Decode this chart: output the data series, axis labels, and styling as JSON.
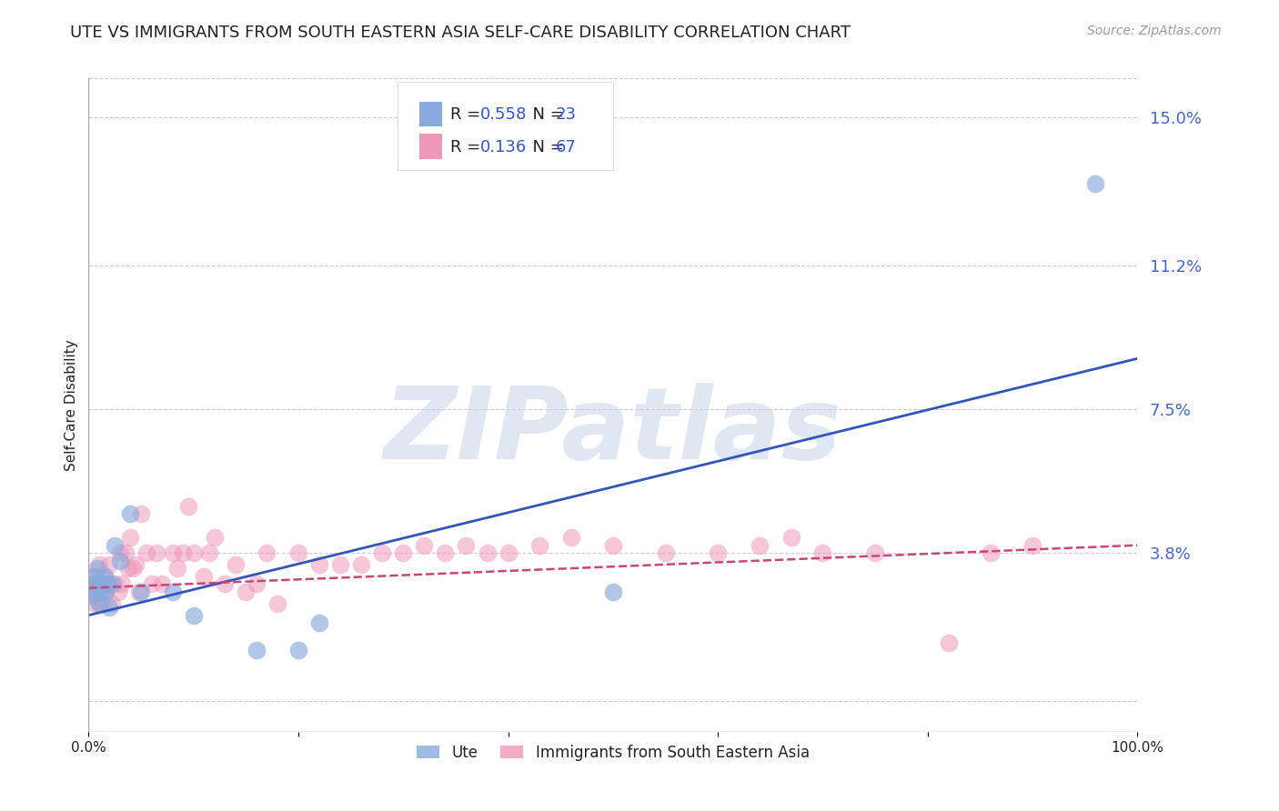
{
  "title": "UTE VS IMMIGRANTS FROM SOUTH EASTERN ASIA SELF-CARE DISABILITY CORRELATION CHART",
  "source": "Source: ZipAtlas.com",
  "ylabel": "Self-Care Disability",
  "watermark": "ZIPatlas",
  "y_ticks": [
    0.0,
    0.038,
    0.075,
    0.112,
    0.15
  ],
  "y_tick_labels": [
    "",
    "3.8%",
    "7.5%",
    "11.2%",
    "15.0%"
  ],
  "x_tick_positions": [
    0.0,
    0.2,
    0.4,
    0.6,
    0.8,
    1.0
  ],
  "x_tick_labels": [
    "0.0%",
    "",
    "",
    "",
    "",
    "100.0%"
  ],
  "xlim": [
    0.0,
    1.0
  ],
  "ylim": [
    -0.008,
    0.16
  ],
  "blue_scatter_x": [
    0.003,
    0.005,
    0.006,
    0.007,
    0.008,
    0.009,
    0.01,
    0.011,
    0.012,
    0.013,
    0.015,
    0.016,
    0.018,
    0.02,
    0.022,
    0.025,
    0.03,
    0.04,
    0.05,
    0.08,
    0.1,
    0.16,
    0.2,
    0.22,
    0.5,
    0.96
  ],
  "blue_scatter_y": [
    0.027,
    0.032,
    0.028,
    0.03,
    0.034,
    0.03,
    0.025,
    0.03,
    0.028,
    0.03,
    0.032,
    0.028,
    0.03,
    0.024,
    0.03,
    0.04,
    0.036,
    0.048,
    0.028,
    0.028,
    0.022,
    0.013,
    0.013,
    0.02,
    0.028,
    0.133
  ],
  "pink_scatter_x": [
    0.003,
    0.005,
    0.006,
    0.007,
    0.008,
    0.009,
    0.01,
    0.011,
    0.012,
    0.013,
    0.015,
    0.016,
    0.018,
    0.02,
    0.022,
    0.025,
    0.028,
    0.03,
    0.032,
    0.035,
    0.038,
    0.04,
    0.042,
    0.045,
    0.048,
    0.05,
    0.055,
    0.06,
    0.065,
    0.07,
    0.08,
    0.085,
    0.09,
    0.095,
    0.1,
    0.11,
    0.115,
    0.12,
    0.13,
    0.14,
    0.15,
    0.16,
    0.17,
    0.18,
    0.2,
    0.22,
    0.24,
    0.26,
    0.28,
    0.3,
    0.32,
    0.34,
    0.36,
    0.38,
    0.4,
    0.43,
    0.46,
    0.5,
    0.55,
    0.6,
    0.64,
    0.67,
    0.7,
    0.75,
    0.82,
    0.86,
    0.9
  ],
  "pink_scatter_y": [
    0.028,
    0.03,
    0.032,
    0.025,
    0.03,
    0.028,
    0.035,
    0.025,
    0.03,
    0.025,
    0.032,
    0.028,
    0.03,
    0.035,
    0.025,
    0.03,
    0.028,
    0.038,
    0.03,
    0.038,
    0.034,
    0.042,
    0.034,
    0.035,
    0.028,
    0.048,
    0.038,
    0.03,
    0.038,
    0.03,
    0.038,
    0.034,
    0.038,
    0.05,
    0.038,
    0.032,
    0.038,
    0.042,
    0.03,
    0.035,
    0.028,
    0.03,
    0.038,
    0.025,
    0.038,
    0.035,
    0.035,
    0.035,
    0.038,
    0.038,
    0.04,
    0.038,
    0.04,
    0.038,
    0.038,
    0.04,
    0.042,
    0.04,
    0.038,
    0.038,
    0.04,
    0.042,
    0.038,
    0.038,
    0.015,
    0.038,
    0.04
  ],
  "blue_line_x": [
    0.0,
    1.0
  ],
  "blue_line_y": [
    0.022,
    0.088
  ],
  "pink_line_x": [
    0.0,
    1.0
  ],
  "pink_line_y": [
    0.029,
    0.04
  ],
  "blue_scatter_color": "#88aadd",
  "pink_scatter_color": "#ee99bb",
  "blue_line_color": "#3355bb",
  "pink_line_color": "#cc4477",
  "background_color": "#ffffff",
  "grid_color": "#cccccc",
  "title_fontsize": 13,
  "axis_label_fontsize": 11,
  "tick_fontsize": 11,
  "right_tick_color": "#4466cc",
  "text_color_dark": "#222222",
  "text_color_blue": "#3355cc",
  "source_color": "#999999"
}
